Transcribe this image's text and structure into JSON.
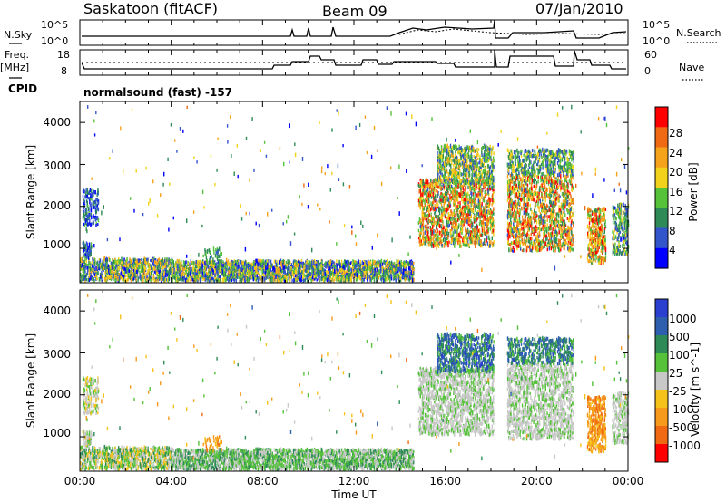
{
  "header": {
    "station": "Saskatoon (fitACF)",
    "beam": "Beam 09",
    "date": "07/Jan/2010"
  },
  "side_labels": {
    "nsky": "N.Sky",
    "freq_top": "Freq.",
    "freq_unit": "[MHz]",
    "cpid": "CPID",
    "nsearch": "N.Search",
    "nave": "Nave"
  },
  "strip_ticks": {
    "nsky_left": [
      "10^5",
      "10^0"
    ],
    "nsky_right": [
      "10^5",
      "10^0"
    ],
    "freq_left": [
      "18",
      "8"
    ],
    "nave_right": [
      "60",
      "0"
    ]
  },
  "cpid_text": "normalsound (fast) -157",
  "colors": {
    "power_scale": [
      "#0000ff",
      "#3355cc",
      "#2e8b57",
      "#55c23a",
      "#f2d21a",
      "#f5a31a",
      "#ef6a12",
      "#ff0000"
    ],
    "velocity_scale": [
      "#2a3fd0",
      "#2e5fae",
      "#2e8b57",
      "#55c23a",
      "#c8c8c8",
      "#f5c21a",
      "#f59a1a",
      "#ef6a12",
      "#ff0000"
    ]
  },
  "chart_data": [
    {
      "type": "heatmap",
      "name": "power-panel",
      "ylabel": "Slant Range [km]",
      "yticks": [
        "1000",
        "2000",
        "3000",
        "4000"
      ],
      "ylim": [
        180,
        4500
      ],
      "colorbar_label": "Power [dB]",
      "colorbar_ticks": [
        "4",
        "8",
        "12",
        "16",
        "20",
        "24",
        "28"
      ]
    },
    {
      "type": "heatmap",
      "name": "velocity-panel",
      "ylabel": "Slant Range [km]",
      "yticks": [
        "1000",
        "2000",
        "3000",
        "4000"
      ],
      "ylim": [
        180,
        4500
      ],
      "xlabel": "Time UT",
      "xticks": [
        "00:00",
        "04:00",
        "08:00",
        "12:00",
        "16:00",
        "20:00",
        "00:00"
      ],
      "colorbar_label": "Velocity [m s^-1]",
      "colorbar_ticks": [
        "1000",
        "500",
        "100",
        "25",
        "-25",
        "-100",
        "-500",
        "-1000"
      ]
    }
  ]
}
